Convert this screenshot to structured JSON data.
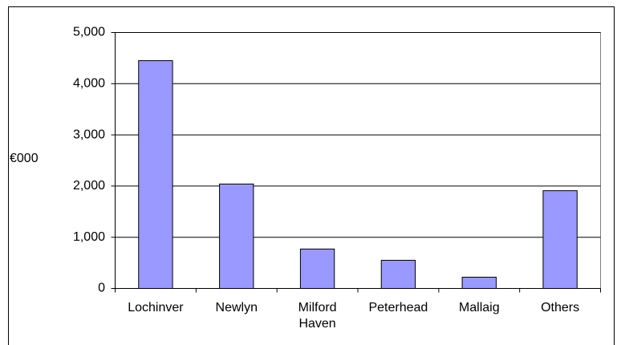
{
  "chart_data": {
    "type": "bar",
    "y_label": "€000",
    "categories": [
      "Lochinver",
      "Newlyn",
      "Milford Haven",
      "Peterhead",
      "Mallaig",
      "Others"
    ],
    "values": [
      4450,
      2040,
      770,
      550,
      220,
      1910
    ],
    "color": "#9999ff",
    "ylim": [
      0,
      5000
    ],
    "yticks": [
      0,
      {
        "value": 1000,
        "label": "1,000"
      },
      {
        "value": 2000,
        "label": "2,000"
      },
      {
        "value": 3000,
        "label": "3,000"
      },
      {
        "value": 4000,
        "label": "4,000"
      },
      {
        "value": 5000,
        "label": "5,000"
      }
    ],
    "grid": true
  }
}
